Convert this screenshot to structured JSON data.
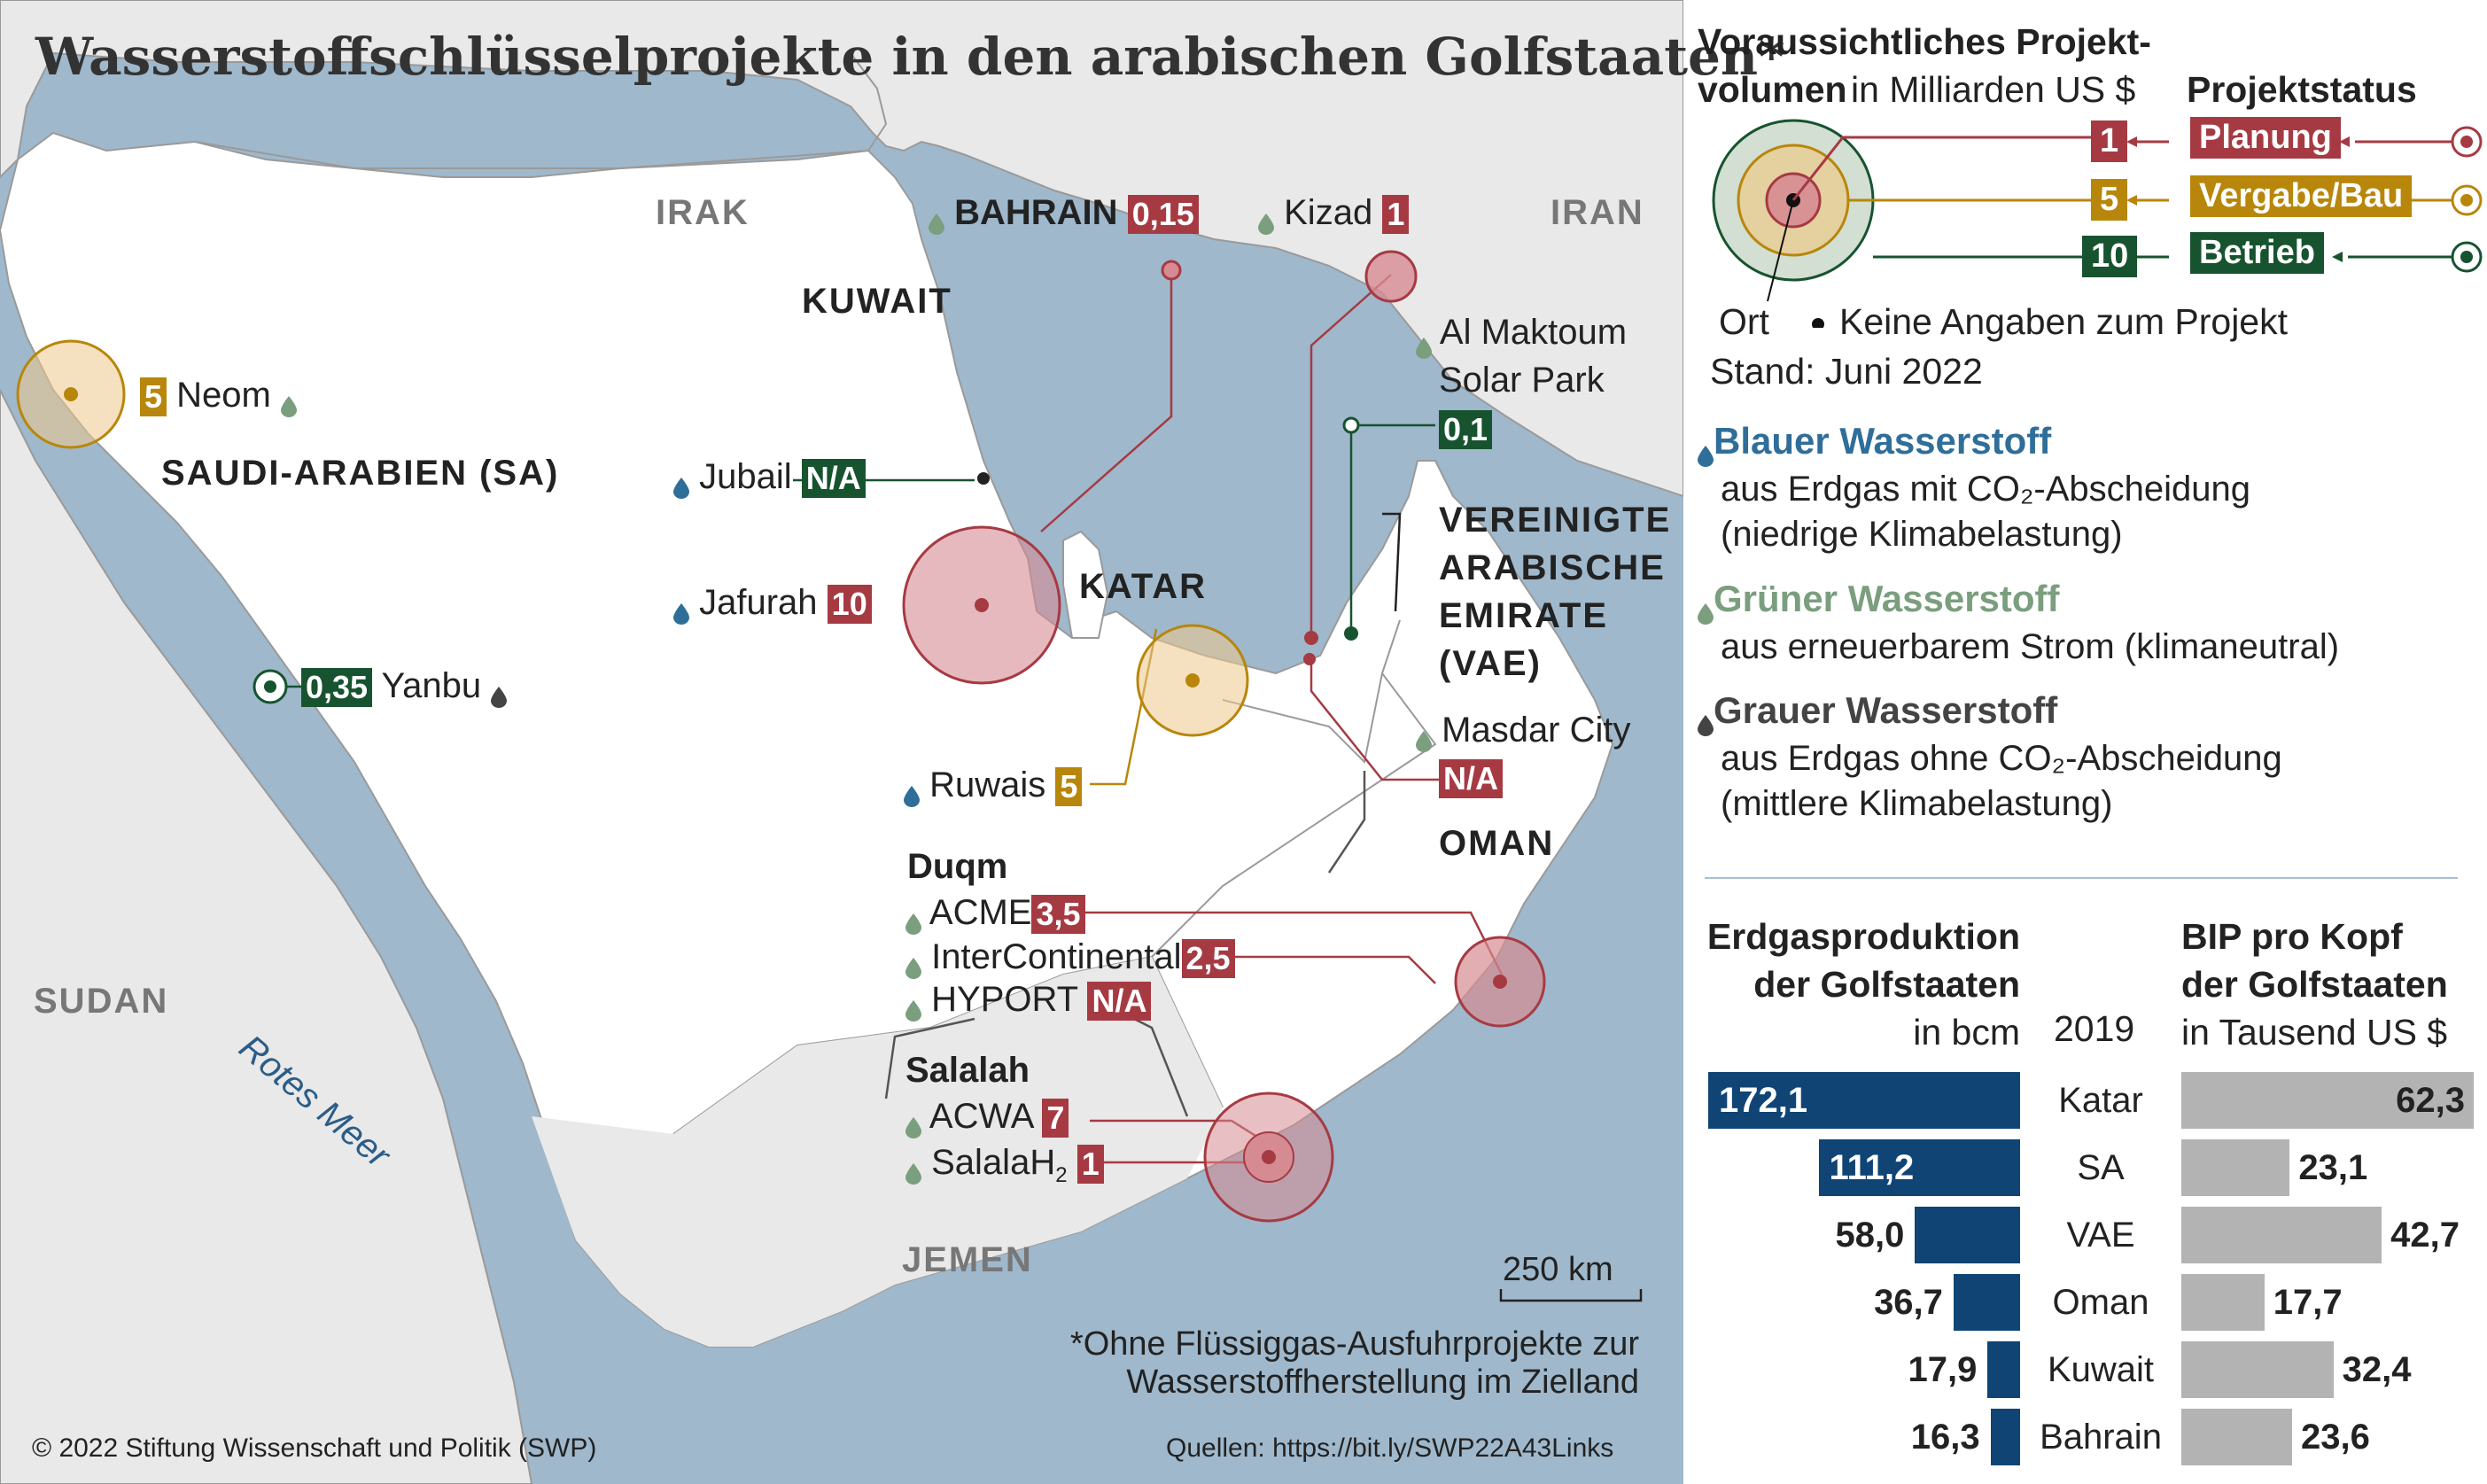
{
  "title": "Wasserstoffschlüsselprojekte in den arabischen Golfstaaten*",
  "countries": {
    "irak": "IRAK",
    "iran": "IRAN",
    "kuwait": "KUWAIT",
    "saudi": "SAUDI-ARABIEN (SA)",
    "katar": "KATAR",
    "vae_1": "VEREINIGTE",
    "vae_2": "ARABISCHE",
    "vae_3": "EMIRATE",
    "vae_4": "(VAE)",
    "oman": "OMAN",
    "sudan": "SUDAN",
    "jemen": "JEMEN"
  },
  "sea_label": "Rotes Meer",
  "projects": {
    "bahrain": {
      "name": "BAHRAIN",
      "value": "0,15",
      "hydrogen": "green",
      "status": "planung"
    },
    "kizad": {
      "name": "Kizad",
      "value": "1",
      "hydrogen": "green",
      "status": "planung"
    },
    "al_maktoum": {
      "name_1": "Al Maktoum",
      "name_2": "Solar Park",
      "value": "0,1",
      "hydrogen": "green",
      "status": "betrieb"
    },
    "neom": {
      "name": "Neom",
      "value": "5",
      "hydrogen": "green",
      "status": "vergabe"
    },
    "jubail": {
      "name": "Jubail",
      "value": "N/A",
      "hydrogen": "blue",
      "status": "betrieb"
    },
    "jafurah": {
      "name": "Jafurah",
      "value": "10",
      "hydrogen": "blue",
      "status": "planung"
    },
    "yanbu": {
      "name": "Yanbu",
      "value": "0,35",
      "hydrogen": "grey",
      "status": "betrieb"
    },
    "ruwais": {
      "name": "Ruwais",
      "value": "5",
      "hydrogen": "blue",
      "status": "vergabe"
    },
    "masdar": {
      "name": "Masdar City",
      "value": "N/A",
      "hydrogen": "green",
      "status": "planung"
    },
    "duqm_heading": "Duqm",
    "acme": {
      "name": "ACME",
      "value": "3,5",
      "hydrogen": "green",
      "status": "planung"
    },
    "intercontinental": {
      "name": "InterContinental",
      "value": "2,5",
      "hydrogen": "green",
      "status": "planung"
    },
    "hyport": {
      "name": "HYPORT",
      "value": "N/A",
      "hydrogen": "green",
      "status": "planung"
    },
    "salalah_heading": "Salalah",
    "acwa": {
      "name": "ACWA",
      "value": "7",
      "hydrogen": "green",
      "status": "planung"
    },
    "salalah_h2": {
      "name": "SalalaH",
      "sub": "2",
      "value": "1",
      "hydrogen": "green",
      "status": "planung"
    }
  },
  "scale_label": "250 km",
  "footnote_1": "*Ohne Flüssiggas-Ausfuhrprojekte zur",
  "footnote_2": "Wasserstoffherstellung im Zielland",
  "copyright": "© 2022  Stiftung Wissenschaft und Politik (SWP)",
  "sources": "Quellen: https://bit.ly/SWP22A43Links",
  "legend": {
    "volume_heading_1": "Voraussichtliches Projekt-",
    "volume_heading_2": "volumen",
    "volume_unit": "in Milliarden US $",
    "status_heading": "Projektstatus",
    "sizes": [
      "1",
      "5",
      "10"
    ],
    "status": {
      "planung": "Planung",
      "vergabe": "Vergabe/Bau",
      "betrieb": "Betrieb"
    },
    "ort": "Ort",
    "no_info": "Keine Angaben zum Projekt",
    "stand": "Stand: Juni 2022",
    "hydrogen_types": [
      {
        "key": "blue",
        "name": "Blauer Wasserstoff",
        "desc_1": "aus Erdgas mit CO₂-Abscheidung",
        "desc_2": "(niedrige Klimabelastung)"
      },
      {
        "key": "green",
        "name": "Grüner Wasserstoff",
        "desc_1": "aus erneuerbarem Strom (klimaneutral)",
        "desc_2": ""
      },
      {
        "key": "grey",
        "name": "Grauer Wasserstoff",
        "desc_1": "aus Erdgas ohne CO₂-Abscheidung",
        "desc_2": "(mittlere Klimabelastung)"
      }
    ]
  },
  "colors": {
    "planung": "#a63a43",
    "vergabe": "#b8860b",
    "betrieb": "#17532f",
    "blue_h2": "#2f6e99",
    "green_h2": "#7a9e7e",
    "grey_h2": "#444444",
    "gas_bar": "#0f4475",
    "gdp_bar": "#b3b3b3",
    "sea": "#9fb8cc",
    "land": "#e9e9e9"
  },
  "chart_data": {
    "type": "bar",
    "year": "2019",
    "categories": [
      "Katar",
      "SA",
      "VAE",
      "Oman",
      "Kuwait",
      "Bahrain"
    ],
    "series": [
      {
        "name": "Erdgasproduktion der Golfstaaten",
        "unit": "in bcm",
        "values": [
          172.1,
          111.2,
          58.0,
          36.7,
          17.9,
          16.3
        ],
        "labels": [
          "172,1",
          "111,2",
          "58,0",
          "36,7",
          "17,9",
          "16,3"
        ]
      },
      {
        "name": "BIP pro Kopf der Golfstaaten",
        "unit": "in Tausend US $",
        "values": [
          62.3,
          23.1,
          42.7,
          17.7,
          32.4,
          23.6
        ],
        "labels": [
          "62,3",
          "23,1",
          "42,7",
          "17,7",
          "32,4",
          "23,6"
        ]
      }
    ],
    "gas_heading_1": "Erdgasproduktion",
    "gas_heading_2": "der Golfstaaten",
    "gas_unit": "in bcm",
    "gdp_heading_1": "BIP pro Kopf",
    "gdp_heading_2": "der Golfstaaten",
    "gdp_unit": "in Tausend US $"
  }
}
